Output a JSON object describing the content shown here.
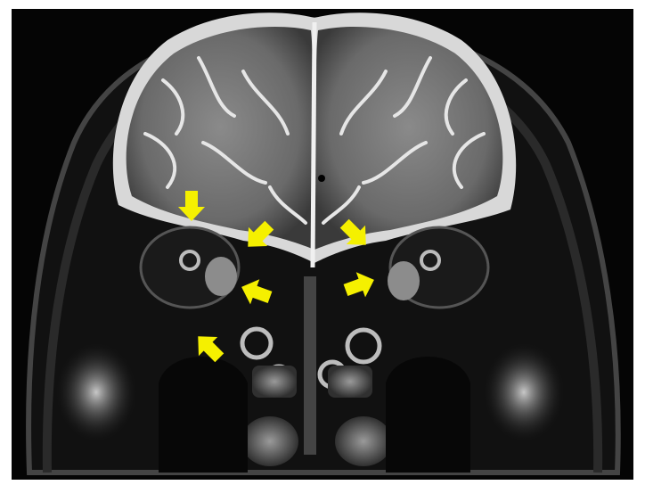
{
  "image": {
    "kind": "coronal-t2-mri",
    "background": "#050505",
    "annotation_color": "#f5f000"
  },
  "arrows": [
    {
      "id": "arrow-1",
      "direction": "down"
    },
    {
      "id": "arrow-2",
      "direction": "down-left"
    },
    {
      "id": "arrow-3",
      "direction": "down-right"
    },
    {
      "id": "arrow-4",
      "direction": "left"
    },
    {
      "id": "arrow-5",
      "direction": "right"
    },
    {
      "id": "arrow-6",
      "direction": "up-left"
    }
  ]
}
